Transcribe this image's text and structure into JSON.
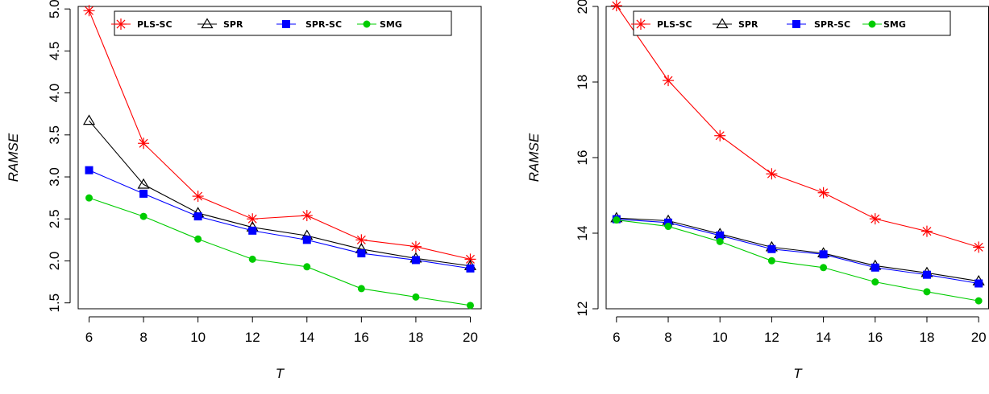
{
  "chart_data": [
    {
      "type": "line",
      "xlabel": "T",
      "ylabel": "RAMSE",
      "x": [
        6,
        8,
        10,
        12,
        14,
        16,
        18,
        20
      ],
      "x_ticks": [
        "6",
        "8",
        "10",
        "12",
        "14",
        "16",
        "18",
        "20"
      ],
      "y_ticks": [
        "1.5",
        "2.0",
        "2.5",
        "3.0",
        "3.5",
        "4.0",
        "4.5",
        "5.0"
      ],
      "y_tick_values": [
        1.5,
        2.0,
        2.5,
        3.0,
        3.5,
        4.0,
        4.5,
        5.0
      ],
      "ylim": [
        1.43,
        5.03
      ],
      "xlim": [
        5.6,
        20.4
      ],
      "legend_position": "top",
      "series": [
        {
          "name": "PLS-SC",
          "color": "#ff0000",
          "marker": "star",
          "values": [
            4.98,
            3.4,
            2.77,
            2.5,
            2.54,
            2.25,
            2.17,
            2.02
          ]
        },
        {
          "name": "SPR",
          "color": "#000000",
          "marker": "triangle",
          "values": [
            3.67,
            2.91,
            2.57,
            2.4,
            2.3,
            2.14,
            2.03,
            1.94
          ]
        },
        {
          "name": "SPR-SC",
          "color": "#0000ff",
          "marker": "square",
          "values": [
            3.08,
            2.8,
            2.53,
            2.36,
            2.25,
            2.09,
            2.01,
            1.91
          ]
        },
        {
          "name": "SMG",
          "color": "#00cc00",
          "marker": "circle",
          "values": [
            2.75,
            2.53,
            2.26,
            2.02,
            1.93,
            1.67,
            1.57,
            1.47
          ]
        }
      ]
    },
    {
      "type": "line",
      "xlabel": "T",
      "ylabel": "RAMSE",
      "x": [
        6,
        8,
        10,
        12,
        14,
        16,
        18,
        20
      ],
      "x_ticks": [
        "6",
        "8",
        "10",
        "12",
        "14",
        "16",
        "18",
        "20"
      ],
      "y_ticks": [
        "12",
        "14",
        "16",
        "18",
        "20"
      ],
      "y_tick_values": [
        12,
        14,
        16,
        18,
        20
      ],
      "ylim": [
        12.0,
        20.0
      ],
      "xlim": [
        5.6,
        20.4
      ],
      "legend_position": "top",
      "series": [
        {
          "name": "PLS-SC",
          "color": "#ff0000",
          "marker": "star",
          "values": [
            20.02,
            18.04,
            16.58,
            15.57,
            15.07,
            14.38,
            14.05,
            13.63
          ]
        },
        {
          "name": "SPR",
          "color": "#000000",
          "marker": "triangle",
          "values": [
            14.4,
            14.33,
            13.98,
            13.63,
            13.47,
            13.14,
            12.95,
            12.73
          ]
        },
        {
          "name": "SPR-SC",
          "color": "#0000ff",
          "marker": "square",
          "values": [
            14.37,
            14.28,
            13.94,
            13.58,
            13.44,
            13.09,
            12.9,
            12.67
          ]
        },
        {
          "name": "SMG",
          "color": "#00cc00",
          "marker": "circle",
          "values": [
            14.35,
            14.18,
            13.78,
            13.27,
            13.09,
            12.71,
            12.45,
            12.21
          ]
        }
      ]
    }
  ]
}
